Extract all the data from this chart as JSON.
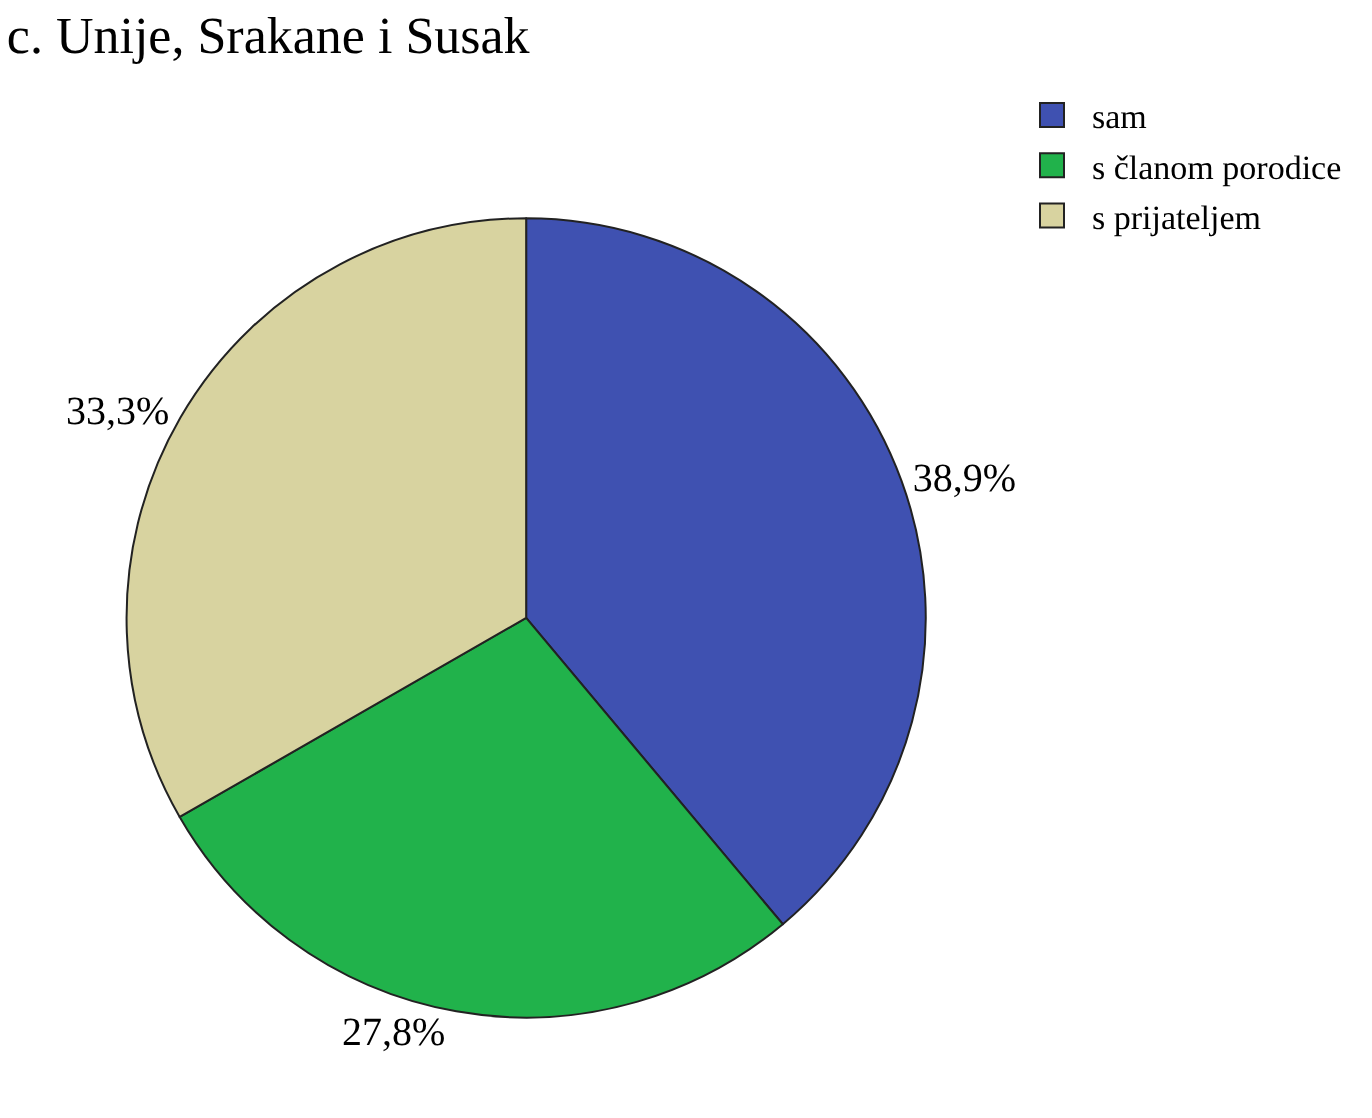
{
  "chart_data": {
    "type": "pie",
    "title": "c. Unije, Srakane i Susak",
    "categories": [
      "sam",
      "s članom porodice",
      "s prijateljem"
    ],
    "values": [
      38.9,
      27.8,
      33.3
    ],
    "colors": [
      "#3f51b1",
      "#21b24b",
      "#d8d3a0"
    ],
    "value_labels": [
      "38,9%",
      "27,8%",
      "33,3%"
    ],
    "legend": "top right"
  }
}
